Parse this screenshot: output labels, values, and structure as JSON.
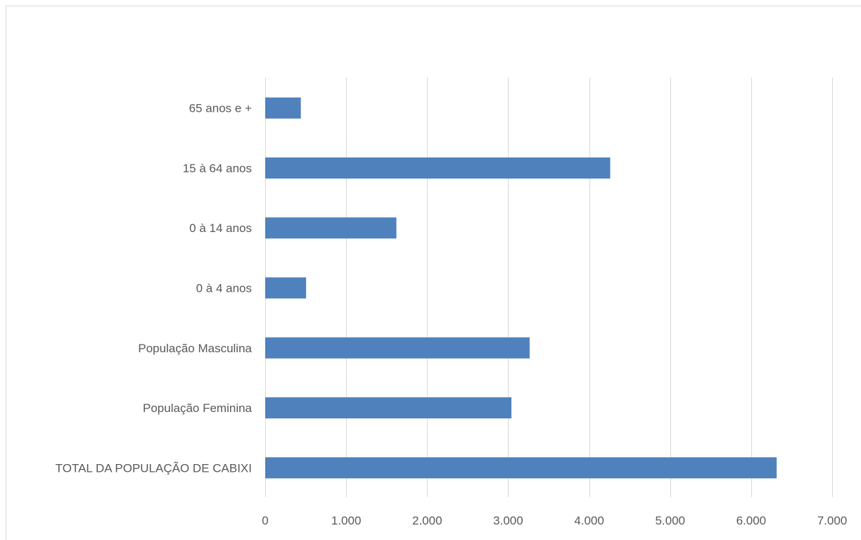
{
  "chart_data": {
    "type": "bar",
    "orientation": "horizontal",
    "title": "",
    "xlabel": "",
    "ylabel": "",
    "categories": [
      "65 anos e +",
      "15 à 64 anos",
      "0 à 14 anos",
      "0 à 4 anos",
      "População Masculina",
      "População Feminina",
      "TOTAL DA POPULAÇÃO DE CABIXI"
    ],
    "values": [
      440,
      4260,
      1620,
      505,
      3265,
      3040,
      6315
    ],
    "xlim": [
      0,
      7000
    ],
    "xticks": [
      0,
      1000,
      2000,
      3000,
      4000,
      5000,
      6000,
      7000
    ],
    "xtick_labels": [
      "0",
      "1.000",
      "2.000",
      "3.000",
      "4.000",
      "5.000",
      "6.000",
      "7.000"
    ],
    "grid": "vertical",
    "legend": "none",
    "colors": {
      "bar": "#4f81bd",
      "grid": "#d9d9d9",
      "text": "#595959"
    }
  }
}
